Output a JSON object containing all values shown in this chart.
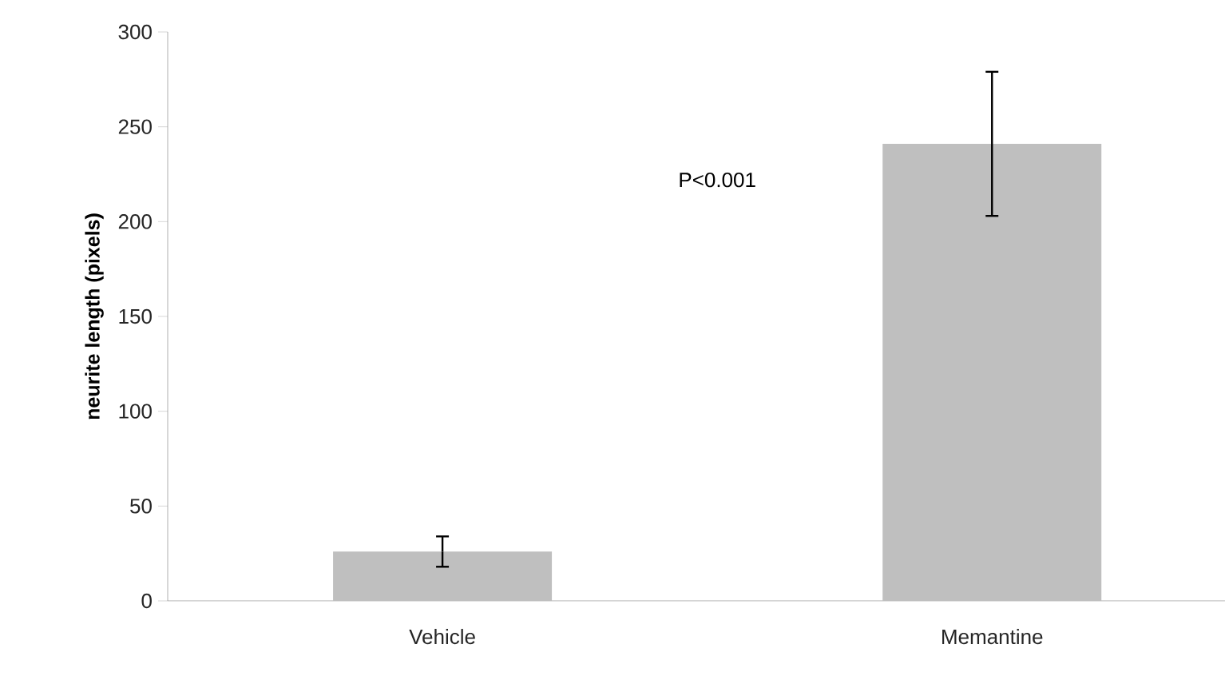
{
  "chart_data": {
    "type": "bar",
    "ylabel": "neurite length (pixels)",
    "categories": [
      "Vehicle",
      "Memantine"
    ],
    "values": [
      26,
      241
    ],
    "errors": [
      8,
      38
    ],
    "color": "#bfbfbf",
    "ylim": [
      0,
      300
    ],
    "yticks": [
      0,
      50,
      100,
      150,
      200,
      250,
      300
    ],
    "annotations": [
      "P<0.001"
    ]
  }
}
